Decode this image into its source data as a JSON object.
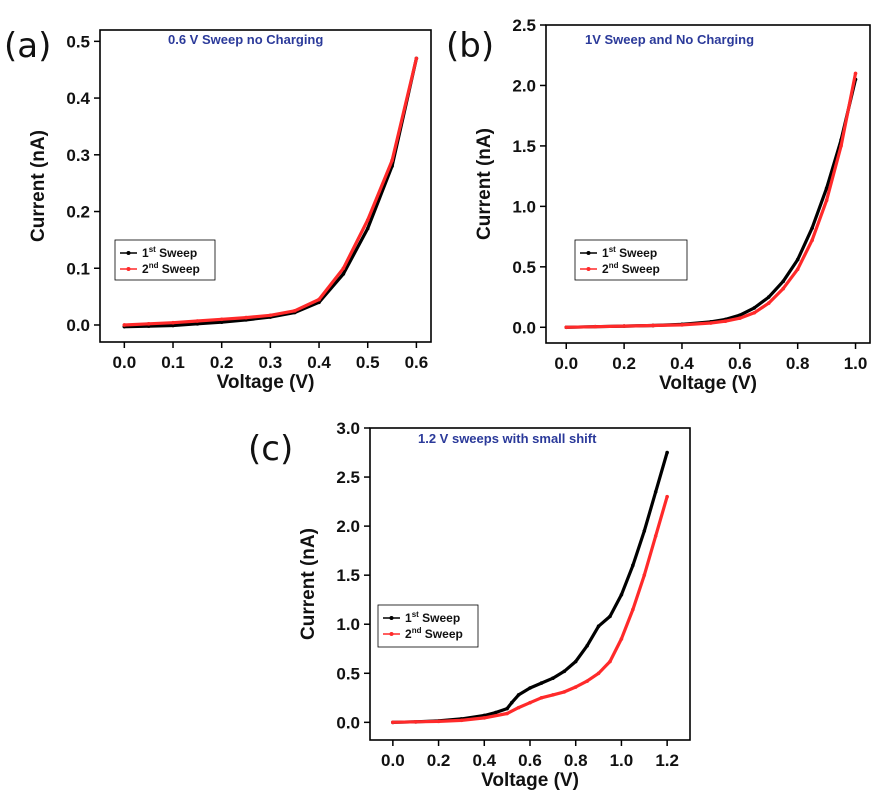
{
  "chart_data": [
    {
      "type": "line",
      "panel_label": "(a)",
      "title": "0.6 V Sweep no Charging",
      "xlabel": "Voltage (V)",
      "ylabel": "Current (nA)",
      "xlim": [
        -0.05,
        0.63
      ],
      "ylim": [
        -0.03,
        0.52
      ],
      "xticks": [
        0.0,
        0.1,
        0.2,
        0.3,
        0.4,
        0.5,
        0.6
      ],
      "xtick_labels": [
        "0.0",
        "0.1",
        "0.2",
        "0.3",
        "0.4",
        "0.5",
        "0.6"
      ],
      "yticks": [
        0.0,
        0.1,
        0.2,
        0.3,
        0.4,
        0.5
      ],
      "ytick_labels": [
        "0.0",
        "0.1",
        "0.2",
        "0.3",
        "0.4",
        "0.5"
      ],
      "legend": {
        "placement": "middle-left",
        "entries": [
          {
            "base": "1",
            "sup": "st",
            "text": "Sweep"
          },
          {
            "base": "2",
            "sup": "nd",
            "text": "Sweep"
          }
        ]
      },
      "series": [
        {
          "name": "1st Sweep",
          "color": "#000000",
          "x": [
            0.0,
            0.05,
            0.1,
            0.15,
            0.2,
            0.25,
            0.3,
            0.35,
            0.4,
            0.45,
            0.5,
            0.55,
            0.6
          ],
          "y": [
            -0.003,
            -0.002,
            -0.001,
            0.002,
            0.005,
            0.009,
            0.014,
            0.022,
            0.04,
            0.09,
            0.17,
            0.28,
            0.47
          ]
        },
        {
          "name": "2nd Sweep",
          "color": "#ff2a2a",
          "x": [
            0.0,
            0.05,
            0.1,
            0.15,
            0.2,
            0.25,
            0.3,
            0.35,
            0.4,
            0.45,
            0.5,
            0.55,
            0.6
          ],
          "y": [
            0.0,
            0.002,
            0.004,
            0.007,
            0.01,
            0.013,
            0.017,
            0.025,
            0.045,
            0.1,
            0.185,
            0.29,
            0.47
          ]
        }
      ]
    },
    {
      "type": "line",
      "panel_label": "(b)",
      "title": "1V Sweep and No Charging",
      "xlabel": "Voltage (V)",
      "ylabel": "Current (nA)",
      "xlim": [
        -0.07,
        1.05
      ],
      "ylim": [
        -0.13,
        2.5
      ],
      "xticks": [
        0.0,
        0.2,
        0.4,
        0.6,
        0.8,
        1.0
      ],
      "xtick_labels": [
        "0.0",
        "0.2",
        "0.4",
        "0.6",
        "0.8",
        "1.0"
      ],
      "yticks": [
        0.0,
        0.5,
        1.0,
        1.5,
        2.0,
        2.5
      ],
      "ytick_labels": [
        "0.0",
        "0.5",
        "1.0",
        "1.5",
        "2.0",
        "2.5"
      ],
      "legend": {
        "placement": "middle-left",
        "entries": [
          {
            "base": "1",
            "sup": "st",
            "text": "Sweep"
          },
          {
            "base": "2",
            "sup": "nd",
            "text": "Sweep"
          }
        ]
      },
      "series": [
        {
          "name": "1st Sweep",
          "color": "#000000",
          "x": [
            0.0,
            0.1,
            0.2,
            0.3,
            0.4,
            0.5,
            0.55,
            0.6,
            0.65,
            0.7,
            0.75,
            0.8,
            0.85,
            0.9,
            0.95,
            1.0
          ],
          "y": [
            0.0,
            0.005,
            0.01,
            0.015,
            0.025,
            0.045,
            0.065,
            0.1,
            0.16,
            0.25,
            0.38,
            0.56,
            0.82,
            1.15,
            1.55,
            2.05
          ]
        },
        {
          "name": "2nd Sweep",
          "color": "#ff2a2a",
          "x": [
            0.0,
            0.1,
            0.2,
            0.3,
            0.4,
            0.5,
            0.55,
            0.6,
            0.65,
            0.7,
            0.75,
            0.8,
            0.85,
            0.9,
            0.95,
            1.0
          ],
          "y": [
            0.0,
            0.005,
            0.01,
            0.015,
            0.02,
            0.035,
            0.05,
            0.075,
            0.12,
            0.2,
            0.32,
            0.48,
            0.72,
            1.05,
            1.5,
            2.1
          ]
        }
      ]
    },
    {
      "type": "line",
      "panel_label": "(c)",
      "title": "1.2 V sweeps with small shift",
      "xlabel": "Voltage (V)",
      "ylabel": "Current (nA)",
      "xlim": [
        -0.1,
        1.3
      ],
      "ylim": [
        -0.18,
        3.0
      ],
      "xticks": [
        0.0,
        0.2,
        0.4,
        0.6,
        0.8,
        1.0,
        1.2
      ],
      "xtick_labels": [
        "0.0",
        "0.2",
        "0.4",
        "0.6",
        "0.8",
        "1.0",
        "1.2"
      ],
      "yticks": [
        0.0,
        0.5,
        1.0,
        1.5,
        2.0,
        2.5,
        3.0
      ],
      "ytick_labels": [
        "0.0",
        "0.5",
        "1.0",
        "1.5",
        "2.0",
        "2.5",
        "3.0"
      ],
      "legend": {
        "placement": "lower-left",
        "entries": [
          {
            "base": "1",
            "sup": "st",
            "text": "Sweep"
          },
          {
            "base": "2",
            "sup": "nd",
            "text": "Sweep"
          }
        ]
      },
      "series": [
        {
          "name": "1st Sweep",
          "color": "#000000",
          "x": [
            0.0,
            0.1,
            0.2,
            0.3,
            0.4,
            0.45,
            0.5,
            0.52,
            0.55,
            0.6,
            0.65,
            0.7,
            0.75,
            0.8,
            0.85,
            0.9,
            0.95,
            1.0,
            1.05,
            1.1,
            1.15,
            1.2
          ],
          "y": [
            0.0,
            0.005,
            0.015,
            0.035,
            0.07,
            0.1,
            0.14,
            0.2,
            0.28,
            0.35,
            0.4,
            0.45,
            0.52,
            0.62,
            0.78,
            0.98,
            1.08,
            1.3,
            1.6,
            1.95,
            2.35,
            2.75
          ]
        },
        {
          "name": "2nd Sweep",
          "color": "#ff2a2a",
          "x": [
            0.0,
            0.1,
            0.2,
            0.3,
            0.4,
            0.5,
            0.55,
            0.6,
            0.65,
            0.7,
            0.75,
            0.8,
            0.85,
            0.9,
            0.95,
            1.0,
            1.05,
            1.1,
            1.15,
            1.2
          ],
          "y": [
            0.0,
            0.005,
            0.01,
            0.02,
            0.045,
            0.09,
            0.15,
            0.2,
            0.25,
            0.28,
            0.31,
            0.36,
            0.42,
            0.5,
            0.62,
            0.85,
            1.15,
            1.5,
            1.9,
            2.3
          ]
        }
      ]
    }
  ]
}
